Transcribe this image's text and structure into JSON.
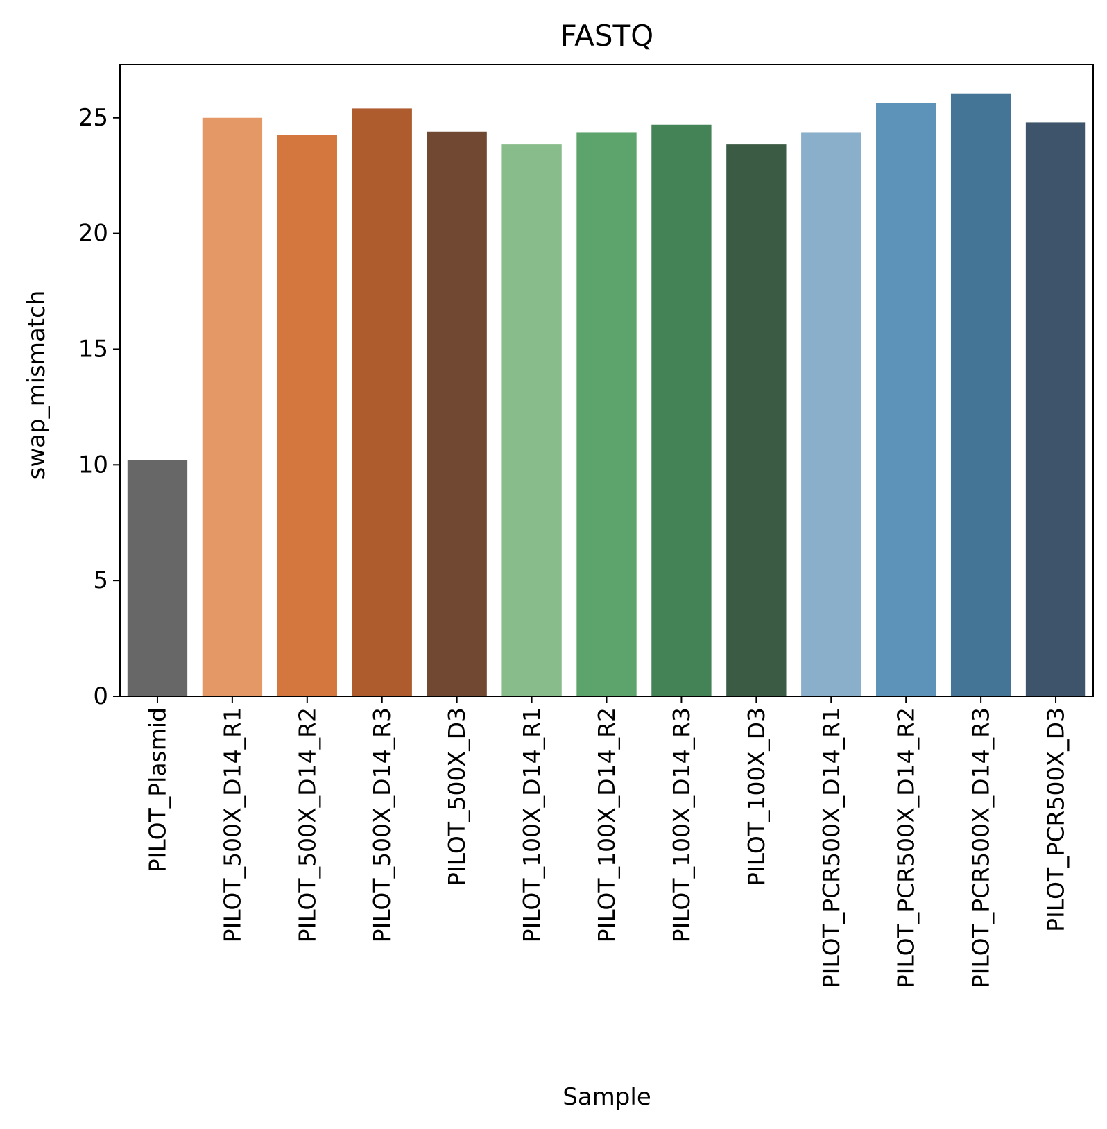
{
  "chart_data": {
    "type": "bar",
    "title": "FASTQ",
    "xlabel": "Sample",
    "ylabel": "swap_mismatch",
    "ylim": [
      0,
      27.3
    ],
    "yticks": [
      0,
      5,
      10,
      15,
      20,
      25
    ],
    "grid": false,
    "legend": "none",
    "categories": [
      "PILOT_Plasmid",
      "PILOT_500X_D14_R1",
      "PILOT_500X_D14_R2",
      "PILOT_500X_D14_R3",
      "PILOT_500X_D3",
      "PILOT_100X_D14_R1",
      "PILOT_100X_D14_R2",
      "PILOT_100X_D14_R3",
      "PILOT_100X_D3",
      "PILOT_PCR500X_D14_R1",
      "PILOT_PCR500X_D14_R2",
      "PILOT_PCR500X_D14_R3",
      "PILOT_PCR500X_D3"
    ],
    "values": [
      10.2,
      25.0,
      24.25,
      25.4,
      24.4,
      23.85,
      24.35,
      24.7,
      23.85,
      24.35,
      25.65,
      26.05,
      24.8
    ],
    "colors": [
      "#676767",
      "#e39866",
      "#d4773f",
      "#ae5b2e",
      "#714932",
      "#89bc8b",
      "#5da36c",
      "#438356",
      "#3b5b45",
      "#8aafcb",
      "#5d93b9",
      "#447596",
      "#3d546a"
    ]
  }
}
